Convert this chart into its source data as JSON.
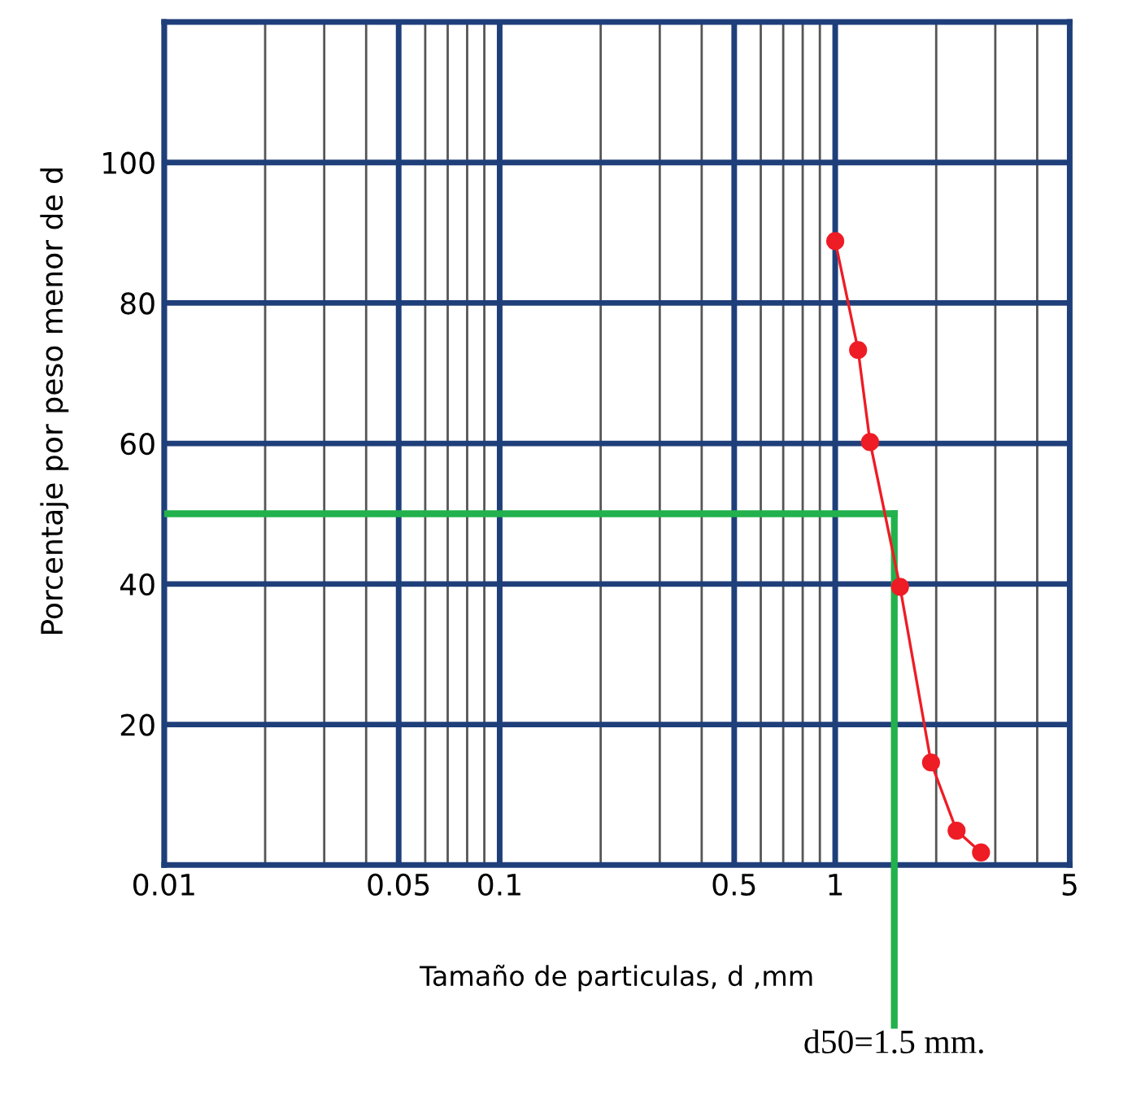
{
  "chart_data": {
    "type": "line",
    "xlabel": "Tamaño de particulas, d ,mm",
    "ylabel": "Porcentaje por peso menor de d",
    "log": "x",
    "xlim": [
      0.01,
      5
    ],
    "ylim": [
      0,
      120
    ],
    "xticks": [
      0.01,
      {
        "value": 0.02,
        "label": null
      },
      {
        "value": 0.03,
        "label": null
      },
      {
        "value": 0.04,
        "label": null
      },
      0.05,
      {
        "value": 0.06,
        "label": null
      },
      {
        "value": 0.07,
        "label": null
      },
      {
        "value": 0.08,
        "label": null
      },
      {
        "value": 0.09,
        "label": null
      },
      0.1,
      {
        "value": 0.2,
        "label": null
      },
      {
        "value": 0.3,
        "label": null
      },
      {
        "value": 0.4,
        "label": null
      },
      0.5,
      {
        "value": 0.6,
        "label": null
      },
      {
        "value": 0.7,
        "label": null
      },
      {
        "value": 0.8,
        "label": null
      },
      {
        "value": 0.9,
        "label": null
      },
      1,
      {
        "value": 2,
        "label": null
      },
      {
        "value": 3,
        "label": null
      },
      {
        "value": 4,
        "label": null
      },
      5
    ],
    "yticks": [
      20,
      40,
      60,
      80,
      100,
      {
        "value": 120,
        "label": null
      }
    ],
    "grid": true,
    "marker": "circle",
    "line_style": "solid",
    "series": [
      {
        "color": "#ee1c25",
        "x": [
          1.0,
          1.17,
          1.27,
          1.56,
          1.93,
          2.3,
          2.72
        ],
        "values": [
          88.8,
          73.3,
          60.2,
          39.6,
          14.6,
          4.9,
          1.8
        ]
      }
    ],
    "ref_lines": [
      {
        "axis": "y",
        "value": 50,
        "color": "#22b14c"
      },
      {
        "axis": "x",
        "value": 1.5,
        "label": "d50=1.5 mm.",
        "color": "#22b14c"
      }
    ]
  }
}
